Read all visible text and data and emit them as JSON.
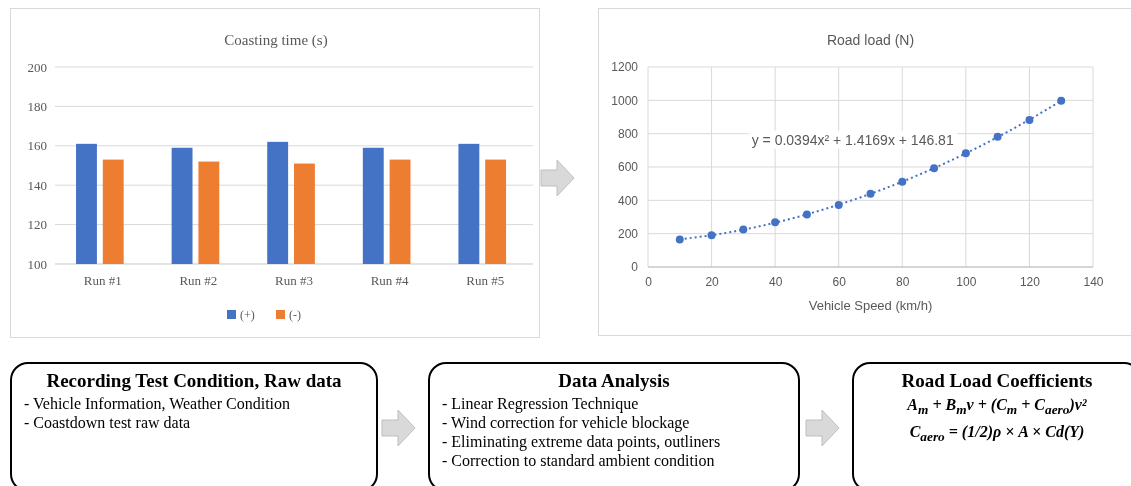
{
  "chart_data": [
    {
      "type": "bar",
      "title": "Coasting time (s)",
      "categories": [
        "Run #1",
        "Run #2",
        "Run #3",
        "Run #4",
        "Run #5"
      ],
      "series": [
        {
          "name": "(+)",
          "color": "#4472c4",
          "values": [
            161,
            159,
            162,
            159,
            161
          ]
        },
        {
          "name": "(-)",
          "color": "#ed7d31",
          "values": [
            153,
            152,
            151,
            153,
            153
          ]
        }
      ],
      "ylim": [
        100,
        200
      ],
      "yticks": [
        100,
        120,
        140,
        160,
        180,
        200
      ],
      "grid": "y",
      "legend": "bottom"
    },
    {
      "type": "scatter",
      "title": "Road load (N)",
      "xlabel": "Vehicle Speed (km/h)",
      "series": [
        {
          "type": "scatter",
          "color": "#4472c4",
          "marker": "circle",
          "x": [
            10,
            20,
            30,
            40,
            50,
            60,
            70,
            80,
            90,
            100,
            110,
            120,
            130
          ],
          "values": [
            165,
            190,
            225,
            268,
            315,
            372,
            440,
            512,
            592,
            682,
            782,
            882,
            997
          ]
        },
        {
          "type": "line",
          "color": "#4472c4",
          "line_style": "dotted",
          "marker": "none",
          "x": [
            10,
            20,
            30,
            40,
            50,
            60,
            70,
            80,
            90,
            100,
            110,
            120,
            130
          ],
          "values": [
            166,
            191,
            224,
            266,
            316,
            374,
            439,
            512,
            593,
            682,
            779,
            884,
            997
          ]
        }
      ],
      "xlim": [
        0,
        140
      ],
      "xticks": [
        0,
        20,
        40,
        60,
        80,
        100,
        120,
        140
      ],
      "ylim": [
        0,
        1200
      ],
      "yticks": [
        0,
        200,
        400,
        600,
        800,
        1000,
        1200
      ],
      "grid": true,
      "annotations": [
        "y = 0.0394x² + 1.4169x + 146.81"
      ]
    },
    {
      "type": "other",
      "title": "Recording Test Condition, Raw data",
      "annotations": [
        "- Vehicle Information, Weather Condition",
        "- Coastdown test raw data"
      ]
    },
    {
      "type": "other",
      "title": "Data Analysis",
      "annotations": [
        "- Linear Regression Technique",
        "- Wind correction for vehicle blockage",
        "- Eliminating extreme data points, outliners",
        "- Correction to standard ambient condition"
      ]
    },
    {
      "type": "other",
      "title": "Road Load Coefficients",
      "annotations": [
        "A$_{m}$ + B$_{m}$v + (C$_{m}$ + C$_{aero}$)v²",
        "C$_{aero}$ = (1/2)ρ × A × Cd(Y)"
      ]
    }
  ]
}
